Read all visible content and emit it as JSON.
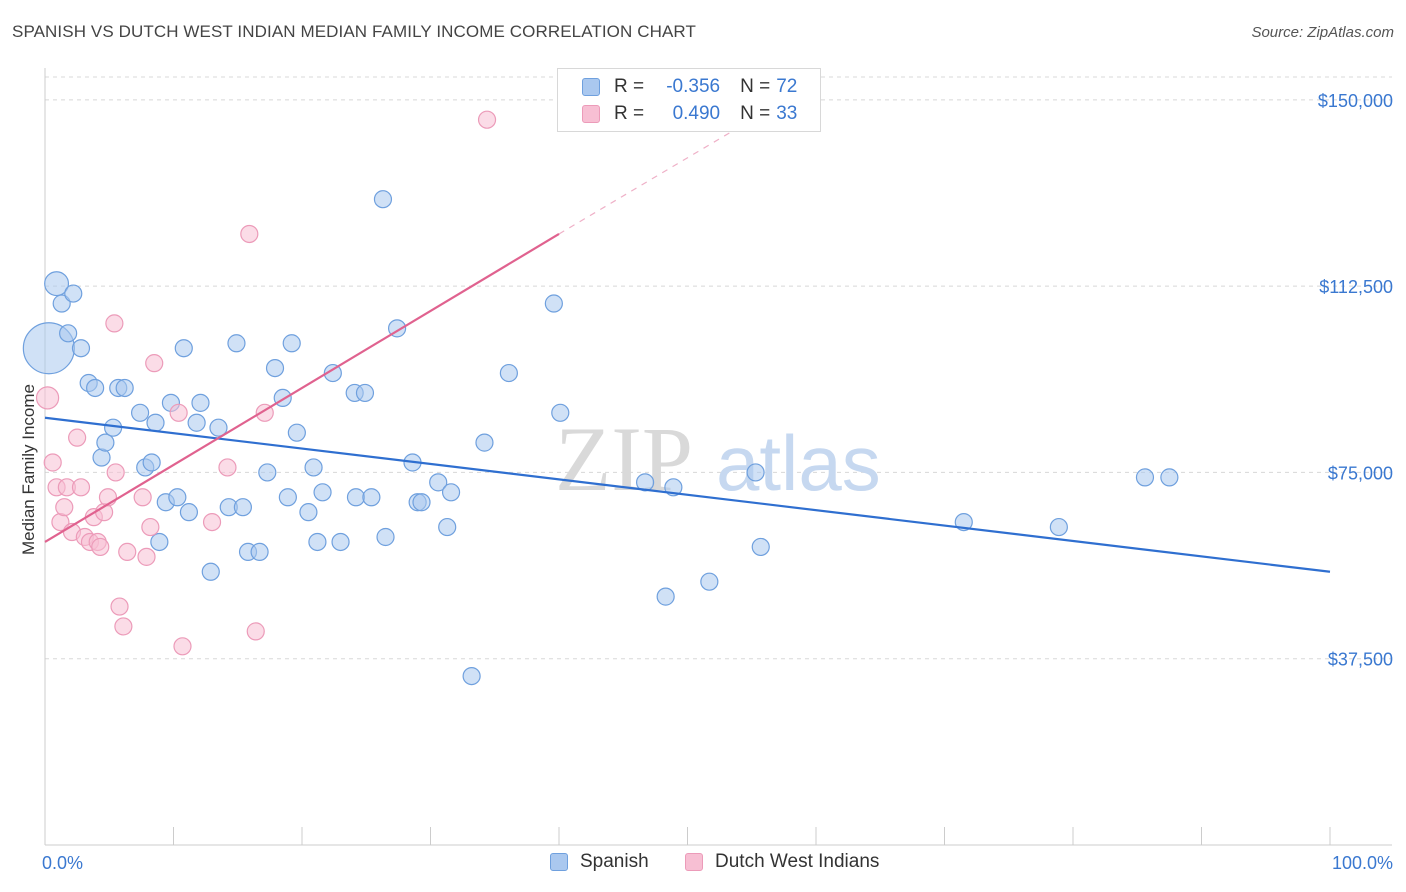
{
  "header": {
    "title": "SPANISH VS DUTCH WEST INDIAN MEDIAN FAMILY INCOME CORRELATION CHART",
    "source": "Source: ZipAtlas.com"
  },
  "watermark": {
    "zip": "ZIP",
    "atlas": "atlas"
  },
  "legend": {
    "spanish": {
      "r_label": "R =",
      "r_value": "-0.356",
      "n_label": "N =",
      "n_value": "72"
    },
    "dutch": {
      "r_label": "R =",
      "r_value": "0.490",
      "n_label": "N =",
      "n_value": "33"
    }
  },
  "colors": {
    "spanish_fill": "#aac8ef",
    "spanish_stroke": "#6fa0de",
    "spanish_line": "#2f6fd0",
    "dutch_fill": "#f7bfd3",
    "dutch_stroke": "#ec9bb9",
    "dutch_line": "#e0628f",
    "tick": "#3a78d0",
    "grid": "#d8d8d8"
  },
  "chart_data": {
    "type": "scatter",
    "title": "SPANISH VS DUTCH WEST INDIAN MEDIAN FAMILY INCOME CORRELATION CHART",
    "xlabel": "",
    "ylabel": "Median Family Income",
    "xlim": [
      0,
      100
    ],
    "ylim": [
      0,
      155000
    ],
    "x_tick_labels": [
      "0.0%",
      "100.0%"
    ],
    "y_ticks": [
      37500,
      75000,
      112500,
      150000
    ],
    "y_tick_labels": [
      "$37,500",
      "$75,000",
      "$112,500",
      "$150,000"
    ],
    "series": [
      {
        "name": "Spanish",
        "r": -0.356,
        "n": 72,
        "trend": {
          "x": [
            0,
            100
          ],
          "y": [
            86000,
            55000
          ]
        },
        "points": [
          [
            0.3,
            100000,
            3
          ],
          [
            0.9,
            113000,
            1.4
          ],
          [
            1.3,
            109000,
            1
          ],
          [
            1.8,
            103000,
            1
          ],
          [
            2.2,
            111000,
            1
          ],
          [
            2.8,
            100000,
            1
          ],
          [
            3.4,
            93000,
            1
          ],
          [
            3.9,
            92000,
            1
          ],
          [
            4.4,
            78000,
            1
          ],
          [
            4.7,
            81000,
            1
          ],
          [
            5.3,
            84000,
            1
          ],
          [
            5.7,
            92000,
            1
          ],
          [
            6.2,
            92000,
            1
          ],
          [
            7.4,
            87000,
            1
          ],
          [
            7.8,
            76000,
            1
          ],
          [
            8.3,
            77000,
            1
          ],
          [
            8.6,
            85000,
            1
          ],
          [
            8.9,
            61000,
            1
          ],
          [
            9.4,
            69000,
            1
          ],
          [
            9.8,
            89000,
            1
          ],
          [
            10.3,
            70000,
            1
          ],
          [
            10.8,
            100000,
            1
          ],
          [
            11.2,
            67000,
            1
          ],
          [
            11.8,
            85000,
            1
          ],
          [
            12.1,
            89000,
            1
          ],
          [
            12.9,
            55000,
            1
          ],
          [
            13.5,
            84000,
            1
          ],
          [
            14.3,
            68000,
            1
          ],
          [
            14.9,
            101000,
            1
          ],
          [
            15.4,
            68000,
            1
          ],
          [
            15.8,
            59000,
            1
          ],
          [
            16.7,
            59000,
            1
          ],
          [
            17.3,
            75000,
            1
          ],
          [
            17.9,
            96000,
            1
          ],
          [
            18.5,
            90000,
            1
          ],
          [
            18.9,
            70000,
            1
          ],
          [
            19.2,
            101000,
            1
          ],
          [
            19.6,
            83000,
            1
          ],
          [
            20.5,
            67000,
            1
          ],
          [
            20.9,
            76000,
            1
          ],
          [
            21.2,
            61000,
            1
          ],
          [
            21.6,
            71000,
            1
          ],
          [
            22.4,
            95000,
            1
          ],
          [
            23.0,
            61000,
            1
          ],
          [
            24.1,
            91000,
            1
          ],
          [
            24.2,
            70000,
            1
          ],
          [
            24.9,
            91000,
            1
          ],
          [
            25.4,
            70000,
            1
          ],
          [
            26.3,
            130000,
            1
          ],
          [
            26.5,
            62000,
            1
          ],
          [
            27.4,
            104000,
            1
          ],
          [
            28.6,
            77000,
            1
          ],
          [
            29.0,
            69000,
            1
          ],
          [
            29.3,
            69000,
            1
          ],
          [
            30.6,
            73000,
            1
          ],
          [
            31.3,
            64000,
            1
          ],
          [
            31.6,
            71000,
            1
          ],
          [
            33.2,
            34000,
            1
          ],
          [
            34.2,
            81000,
            1
          ],
          [
            36.1,
            95000,
            1
          ],
          [
            39.6,
            109000,
            1
          ],
          [
            40.1,
            87000,
            1
          ],
          [
            46.7,
            73000,
            1
          ],
          [
            48.3,
            50000,
            1
          ],
          [
            48.9,
            72000,
            1
          ],
          [
            51.7,
            53000,
            1
          ],
          [
            55.3,
            75000,
            1
          ],
          [
            55.7,
            60000,
            1
          ],
          [
            71.5,
            65000,
            1
          ],
          [
            78.9,
            64000,
            1
          ],
          [
            85.6,
            74000,
            1
          ],
          [
            87.5,
            74000,
            1
          ]
        ]
      },
      {
        "name": "Dutch West Indians",
        "r": 0.49,
        "n": 33,
        "trend": {
          "x": [
            0,
            40
          ],
          "y": [
            61000,
            123000
          ]
        },
        "trend_dashed": {
          "x": [
            40,
            55
          ],
          "y": [
            123000,
            146000
          ]
        },
        "points": [
          [
            0.2,
            90000,
            1.3
          ],
          [
            0.6,
            77000,
            1
          ],
          [
            0.9,
            72000,
            1
          ],
          [
            1.2,
            65000,
            1
          ],
          [
            1.5,
            68000,
            1
          ],
          [
            1.7,
            72000,
            1
          ],
          [
            2.1,
            63000,
            1
          ],
          [
            2.5,
            82000,
            1
          ],
          [
            2.8,
            72000,
            1
          ],
          [
            3.1,
            62000,
            1
          ],
          [
            3.5,
            61000,
            1
          ],
          [
            3.8,
            66000,
            1
          ],
          [
            4.1,
            61000,
            1
          ],
          [
            4.3,
            60000,
            1
          ],
          [
            4.6,
            67000,
            1
          ],
          [
            4.9,
            70000,
            1
          ],
          [
            5.5,
            75000,
            1
          ],
          [
            5.8,
            48000,
            1
          ],
          [
            6.1,
            44000,
            1
          ],
          [
            6.4,
            59000,
            1
          ],
          [
            5.4,
            105000,
            1
          ],
          [
            7.6,
            70000,
            1
          ],
          [
            7.9,
            58000,
            1
          ],
          [
            8.2,
            64000,
            1
          ],
          [
            8.5,
            97000,
            1
          ],
          [
            10.4,
            87000,
            1
          ],
          [
            10.7,
            40000,
            1
          ],
          [
            13.0,
            65000,
            1
          ],
          [
            14.2,
            76000,
            1
          ],
          [
            15.9,
            123000,
            1
          ],
          [
            16.4,
            43000,
            1
          ],
          [
            17.1,
            87000,
            1
          ],
          [
            34.4,
            146000,
            1
          ]
        ]
      }
    ]
  },
  "bottom_legend": {
    "spanish_label": "Spanish",
    "dutch_label": "Dutch West Indians"
  }
}
